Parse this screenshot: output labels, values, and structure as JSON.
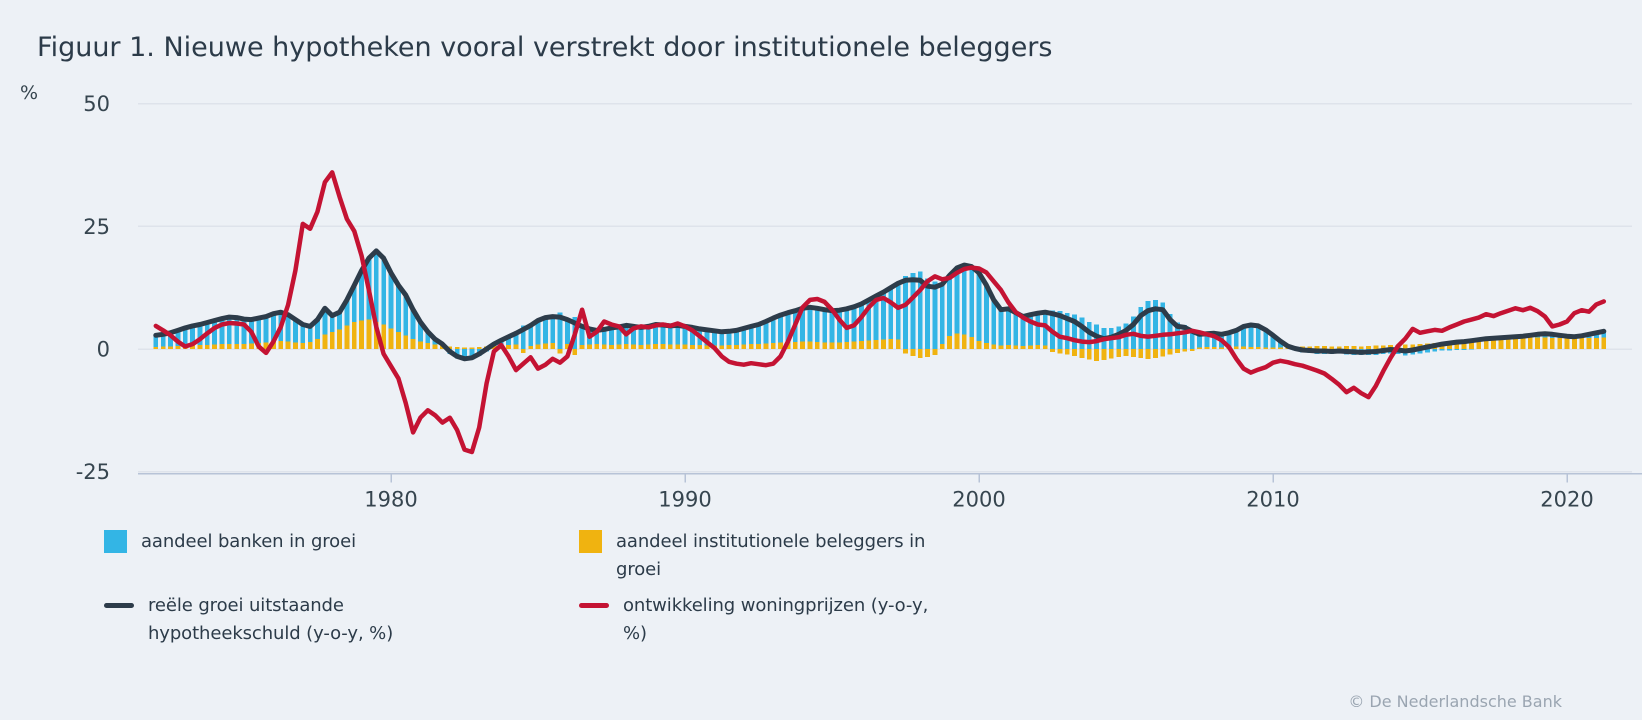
{
  "figure": {
    "title": "Figuur 1. Nieuwe hypotheken vooral verstrekt door institutionele beleggers",
    "attribution": "© De Nederlandsche Bank"
  },
  "colors": {
    "background": "#edf1f6",
    "grid": "#dee3eb",
    "axis": "#b7c3d7",
    "tick_text": "#36454f",
    "title_text": "#2c3b49",
    "legend_text": "#2c3b49",
    "attribution_text": "#9aa5b1"
  },
  "chart_data": {
    "type": "bar+line",
    "title": "Figuur 1. Nieuwe hypotheken vooral verstrekt door institutionele beleggers",
    "ylabel": "%",
    "xlabel": "",
    "x_start": 1972,
    "x_step": 0.25,
    "x_end": 2021.25,
    "xticks": [
      1980,
      1990,
      2000,
      2010,
      2020
    ],
    "yticks": [
      50,
      25,
      0,
      -25
    ],
    "ylim": [
      -25,
      50
    ],
    "grid": "horizontal",
    "legend_position": "bottom",
    "bars_stacked": true,
    "series": [
      {
        "name": "aandeel banken in groei",
        "type": "bar",
        "color": "#33b5e5",
        "values": [
          2.4,
          2.5,
          2.8,
          3.2,
          3.7,
          4.0,
          4.2,
          4.6,
          4.9,
          5.2,
          5.5,
          5.4,
          5.1,
          4.9,
          5.1,
          5.3,
          5.7,
          5.9,
          5.5,
          4.7,
          3.8,
          3.2,
          4.0,
          5.3,
          3.3,
          3.5,
          5.2,
          7.5,
          10.2,
          12.5,
          14.5,
          13.5,
          11.3,
          9.5,
          8.2,
          6.0,
          4.0,
          2.3,
          1.1,
          0.3,
          -1.0,
          -1.9,
          -2.3,
          -2.1,
          -1.4,
          -0.5,
          0.4,
          1.1,
          1.7,
          2.3,
          4.8,
          4.2,
          4.9,
          5.3,
          5.4,
          7.4,
          5.0,
          6.5,
          3.8,
          3.2,
          2.8,
          3.1,
          3.5,
          3.6,
          3.8,
          3.7,
          3.6,
          3.7,
          4.0,
          3.9,
          3.8,
          3.9,
          3.7,
          3.6,
          3.3,
          3.2,
          3.0,
          2.8,
          2.8,
          3.0,
          3.3,
          3.6,
          4.0,
          4.5,
          5.1,
          5.6,
          6.1,
          6.4,
          6.8,
          7.0,
          6.9,
          6.7,
          6.5,
          6.6,
          6.8,
          7.1,
          7.6,
          8.3,
          9.0,
          9.7,
          10.5,
          11.5,
          14.9,
          15.5,
          15.8,
          14.4,
          13.8,
          12.2,
          12.4,
          13.3,
          14.1,
          14.4,
          13.9,
          11.8,
          9.1,
          7.3,
          7.4,
          6.7,
          6.0,
          6.3,
          6.5,
          6.8,
          7.8,
          7.7,
          7.3,
          7.0,
          6.4,
          5.5,
          5.0,
          4.3,
          4.3,
          4.6,
          5.2,
          6.6,
          8.6,
          9.8,
          10.0,
          9.5,
          7.1,
          5.4,
          4.9,
          4.0,
          2.7,
          2.7,
          2.8,
          2.7,
          2.9,
          3.3,
          4.1,
          4.5,
          4.3,
          3.6,
          2.5,
          1.3,
          0.2,
          -0.3,
          -0.7,
          -0.8,
          -1.0,
          -1.0,
          -1.0,
          -0.9,
          -1.1,
          -1.2,
          -1.2,
          -1.2,
          -1.2,
          -1.0,
          -0.9,
          -1.0,
          -1.3,
          -1.1,
          -0.9,
          -0.7,
          -0.5,
          -0.3,
          -0.3,
          -0.2,
          -0.2,
          -0.1,
          0.0,
          0.1,
          0.2,
          0.2,
          0.3,
          0.3,
          0.4,
          0.5,
          0.7,
          0.8,
          0.8,
          0.6,
          0.5,
          0.4,
          0.5,
          0.8,
          1.1,
          1.3
        ]
      },
      {
        "name": "aandeel institutionele beleggers in groei",
        "type": "bar",
        "color": "#f0b310",
        "values": [
          0.4,
          0.5,
          0.5,
          0.6,
          0.6,
          0.7,
          0.8,
          0.8,
          0.9,
          1.0,
          1.0,
          1.0,
          1.0,
          1.1,
          1.2,
          1.3,
          1.5,
          1.6,
          1.5,
          1.3,
          1.2,
          1.4,
          2.0,
          3.0,
          3.5,
          4.0,
          4.8,
          5.5,
          5.8,
          6.0,
          5.5,
          5.0,
          4.2,
          3.5,
          2.8,
          2.0,
          1.5,
          1.2,
          0.9,
          0.7,
          0.5,
          0.4,
          0.3,
          0.3,
          0.4,
          0.5,
          0.6,
          0.7,
          0.8,
          0.9,
          -0.8,
          0.6,
          0.9,
          1.1,
          1.2,
          -0.9,
          1.0,
          -1.2,
          0.8,
          0.9,
          1.0,
          0.9,
          0.8,
          0.9,
          1.0,
          0.9,
          0.8,
          0.9,
          1.0,
          1.0,
          0.9,
          0.9,
          0.9,
          0.8,
          0.8,
          0.7,
          0.7,
          0.7,
          0.8,
          0.8,
          0.9,
          1.0,
          1.0,
          1.1,
          1.2,
          1.3,
          1.3,
          1.4,
          1.5,
          1.5,
          1.4,
          1.3,
          1.3,
          1.3,
          1.4,
          1.5,
          1.6,
          1.7,
          1.8,
          1.9,
          2.0,
          1.9,
          -0.9,
          -1.4,
          -1.8,
          -1.6,
          -1.2,
          1.0,
          2.6,
          3.2,
          3.0,
          2.4,
          1.6,
          1.2,
          0.9,
          0.7,
          0.8,
          0.7,
          0.6,
          0.7,
          0.8,
          0.7,
          -0.6,
          -0.9,
          -1.1,
          -1.4,
          -1.8,
          -2.1,
          -2.4,
          -2.2,
          -1.9,
          -1.6,
          -1.4,
          -1.6,
          -1.8,
          -2.0,
          -1.8,
          -1.5,
          -1.1,
          -0.8,
          -0.5,
          -0.4,
          0.3,
          0.4,
          0.4,
          0.3,
          0.4,
          0.5,
          0.5,
          0.4,
          0.4,
          0.3,
          0.3,
          0.3,
          0.4,
          0.4,
          0.5,
          0.5,
          0.6,
          0.6,
          0.5,
          0.5,
          0.6,
          0.6,
          0.5,
          0.6,
          0.7,
          0.7,
          0.8,
          0.8,
          0.9,
          0.9,
          1.0,
          1.1,
          1.2,
          1.3,
          1.5,
          1.6,
          1.7,
          1.8,
          1.9,
          2.0,
          2.0,
          2.1,
          2.1,
          2.2,
          2.2,
          2.3,
          2.3,
          2.3,
          2.2,
          2.2,
          2.1,
          2.1,
          2.2,
          2.2,
          2.2,
          2.3
        ]
      },
      {
        "name": "reële groei uitstaande hypotheekschuld (y-o-y, %)",
        "type": "line",
        "color": "#2d3c4a",
        "values": [
          2.8,
          3.0,
          3.3,
          3.8,
          4.3,
          4.7,
          5.0,
          5.4,
          5.8,
          6.2,
          6.5,
          6.4,
          6.1,
          6.0,
          6.3,
          6.6,
          7.2,
          7.5,
          7.0,
          6.0,
          5.0,
          4.6,
          6.0,
          8.3,
          6.8,
          7.5,
          10.0,
          13.0,
          16.0,
          18.5,
          20.0,
          18.5,
          15.5,
          13.0,
          11.0,
          8.0,
          5.5,
          3.5,
          2.0,
          1.0,
          -0.5,
          -1.5,
          -2.0,
          -1.8,
          -1.0,
          0.0,
          1.0,
          1.8,
          2.5,
          3.2,
          4.0,
          4.8,
          5.8,
          6.4,
          6.6,
          6.5,
          6.0,
          5.3,
          4.6,
          4.1,
          3.8,
          4.0,
          4.3,
          4.5,
          4.8,
          4.6,
          4.4,
          4.6,
          5.0,
          4.9,
          4.7,
          4.8,
          4.6,
          4.4,
          4.1,
          3.9,
          3.7,
          3.5,
          3.6,
          3.8,
          4.2,
          4.6,
          5.0,
          5.6,
          6.3,
          6.9,
          7.4,
          7.8,
          8.3,
          8.5,
          8.3,
          8.0,
          7.8,
          7.9,
          8.2,
          8.6,
          9.2,
          10.0,
          10.8,
          11.6,
          12.5,
          13.4,
          14.0,
          14.1,
          14.0,
          12.8,
          12.6,
          13.2,
          15.0,
          16.5,
          17.1,
          16.8,
          15.5,
          13.0,
          10.0,
          8.0,
          8.2,
          7.4,
          6.6,
          7.0,
          7.3,
          7.5,
          7.2,
          6.8,
          6.2,
          5.6,
          4.6,
          3.4,
          2.6,
          2.1,
          2.4,
          3.0,
          3.8,
          5.0,
          6.8,
          7.8,
          8.2,
          8.0,
          6.0,
          4.6,
          4.4,
          3.6,
          3.0,
          3.1,
          3.2,
          3.0,
          3.3,
          3.8,
          4.6,
          4.9,
          4.7,
          3.9,
          2.8,
          1.6,
          0.6,
          0.1,
          -0.2,
          -0.3,
          -0.4,
          -0.4,
          -0.5,
          -0.4,
          -0.5,
          -0.6,
          -0.7,
          -0.6,
          -0.5,
          -0.3,
          -0.1,
          -0.2,
          -0.4,
          -0.2,
          0.1,
          0.4,
          0.7,
          1.0,
          1.2,
          1.4,
          1.5,
          1.7,
          1.9,
          2.1,
          2.2,
          2.3,
          2.4,
          2.5,
          2.6,
          2.8,
          3.0,
          3.1,
          3.0,
          2.8,
          2.6,
          2.5,
          2.7,
          3.0,
          3.3,
          3.6
        ]
      },
      {
        "name": "ontwikkeling woningprijzen (y-o-y, %)",
        "type": "line",
        "color": "#c41333",
        "values": [
          4.7,
          3.8,
          2.8,
          1.5,
          0.5,
          1.0,
          2.0,
          3.2,
          4.3,
          5.0,
          5.3,
          5.2,
          5.0,
          3.5,
          0.5,
          -0.8,
          1.5,
          4.5,
          9.0,
          16.0,
          25.5,
          24.5,
          28.0,
          34.0,
          36.0,
          31.0,
          26.5,
          24.0,
          19.0,
          12.0,
          4.5,
          -1.0,
          -3.5,
          -6.0,
          -11.0,
          -17.0,
          -14.0,
          -12.5,
          -13.5,
          -15.0,
          -14.0,
          -16.5,
          -20.5,
          -21.0,
          -16.0,
          -7.0,
          -0.5,
          0.8,
          -1.5,
          -4.3,
          -3.0,
          -1.7,
          -4.0,
          -3.2,
          -2.0,
          -2.8,
          -1.5,
          3.0,
          8.0,
          2.5,
          3.5,
          5.6,
          5.0,
          4.6,
          3.0,
          4.2,
          4.6,
          4.4,
          4.8,
          5.0,
          4.7,
          5.2,
          4.6,
          3.8,
          2.6,
          1.4,
          0.2,
          -1.5,
          -2.6,
          -3.0,
          -3.2,
          -2.9,
          -3.1,
          -3.3,
          -3.0,
          -1.5,
          1.5,
          5.0,
          8.5,
          10.0,
          10.2,
          9.6,
          8.0,
          6.0,
          4.3,
          4.8,
          6.5,
          8.5,
          10.0,
          10.4,
          9.5,
          8.4,
          9.0,
          10.5,
          12.0,
          13.8,
          14.8,
          14.2,
          14.5,
          15.5,
          16.3,
          16.6,
          16.4,
          15.6,
          13.8,
          12.0,
          9.5,
          7.5,
          6.4,
          5.6,
          5.0,
          4.8,
          3.5,
          2.5,
          2.2,
          1.8,
          1.5,
          1.4,
          1.6,
          2.0,
          2.2,
          2.4,
          2.9,
          3.1,
          2.7,
          2.5,
          2.7,
          2.9,
          3.0,
          3.2,
          3.4,
          3.7,
          3.4,
          3.0,
          2.6,
          1.8,
          0.4,
          -2.0,
          -4.0,
          -4.8,
          -4.2,
          -3.7,
          -2.8,
          -2.4,
          -2.7,
          -3.1,
          -3.4,
          -3.9,
          -4.4,
          -5.0,
          -6.1,
          -7.3,
          -8.8,
          -7.9,
          -9.0,
          -9.8,
          -7.5,
          -4.5,
          -1.8,
          0.6,
          2.1,
          4.1,
          3.3,
          3.6,
          3.9,
          3.7,
          4.4,
          5.0,
          5.6,
          6.0,
          6.4,
          7.1,
          6.7,
          7.3,
          7.8,
          8.3,
          7.9,
          8.4,
          7.7,
          6.6,
          4.6,
          5.0,
          5.6,
          7.3,
          7.9,
          7.6,
          9.1,
          9.7
        ]
      }
    ]
  }
}
